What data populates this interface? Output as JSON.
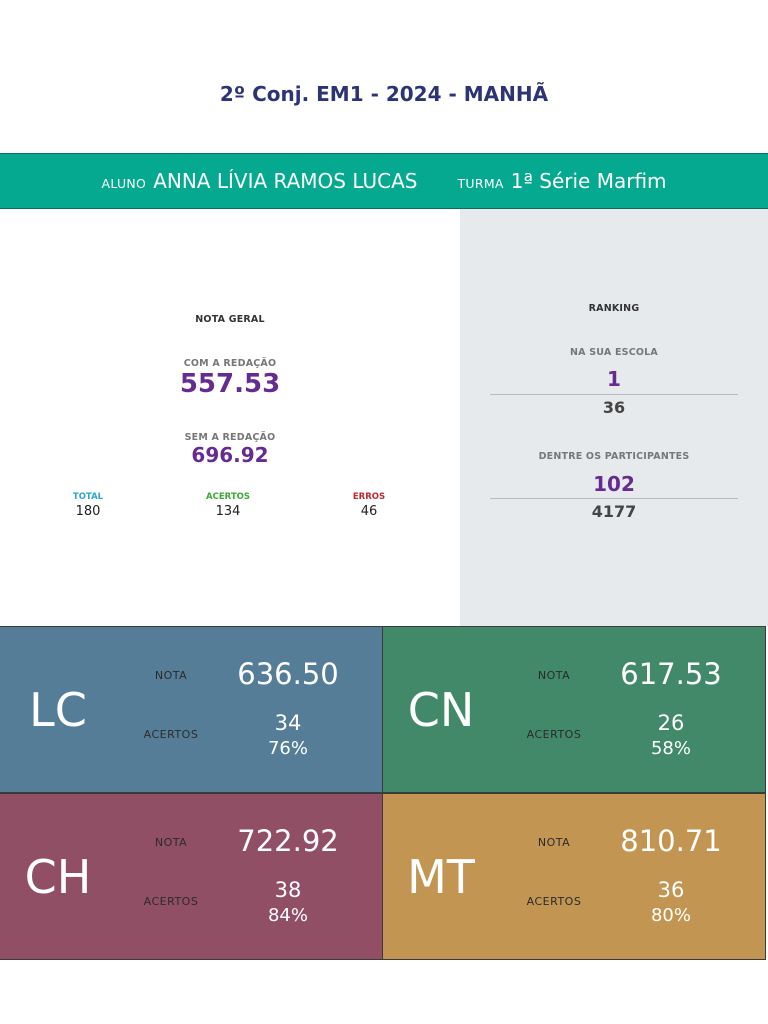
{
  "title": "2º Conj. EM1 - 2024 - MANHÃ",
  "student": {
    "aluno_label": "ALUNO",
    "aluno_name": "ANNA LÍVIA RAMOS LUCAS",
    "turma_label": "TURMA",
    "turma_value": "1ª Série Marfim"
  },
  "nota_geral": {
    "heading": "NOTA GERAL",
    "com_redacao_label": "COM A REDAÇÃO",
    "com_redacao_value": "557.53",
    "sem_redacao_label": "SEM A REDAÇÃO",
    "sem_redacao_value": "696.92",
    "total_label": "TOTAL",
    "total_value": "180",
    "acertos_label": "ACERTOS",
    "acertos_value": "134",
    "erros_label": "ERROS",
    "erros_value": "46"
  },
  "ranking": {
    "heading": "RANKING",
    "escola_label": "NA SUA ESCOLA",
    "escola_position": "1",
    "escola_total": "36",
    "participantes_label": "DENTRE OS PARTICIPANTES",
    "participantes_position": "102",
    "participantes_total": "4177"
  },
  "areas": {
    "nota_label": "NOTA",
    "acertos_label": "ACERTOS",
    "lc": {
      "code": "LC",
      "nota": "636.50",
      "acertos": "34",
      "percent": "76%",
      "color": "#567d97"
    },
    "cn": {
      "code": "CN",
      "nota": "617.53",
      "acertos": "26",
      "percent": "58%",
      "color": "#418968"
    },
    "ch": {
      "code": "CH",
      "nota": "722.92",
      "acertos": "38",
      "percent": "84%",
      "color": "#914f65"
    },
    "mt": {
      "code": "MT",
      "nota": "810.71",
      "acertos": "36",
      "percent": "80%",
      "color": "#c29552"
    }
  },
  "colors": {
    "title": "#2d3475",
    "student_bar": "#05a98f",
    "score_purple": "#652b91",
    "ranking_bg": "#e7eaed",
    "total": "#2aa6d6",
    "acertos": "#3aaa35",
    "erros": "#c0282d"
  }
}
